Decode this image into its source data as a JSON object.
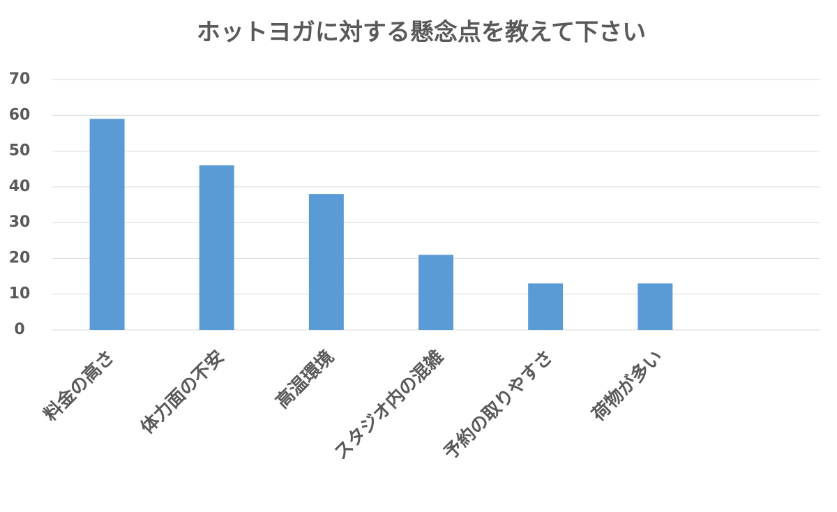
{
  "chart_data": {
    "type": "bar",
    "title": "ホットヨガに対する懸念点を教えて下さい",
    "categories": [
      "料金の高さ",
      "体力面の不安",
      "高温環境",
      "スタジオ内の混雑",
      "予約の取りやすさ",
      "荷物が多い",
      null
    ],
    "values": [
      59,
      46,
      38,
      21,
      13,
      13,
      null
    ],
    "color": "#5b9bd5",
    "ylim": [
      0,
      70
    ],
    "yticks": [
      0,
      10,
      20,
      30,
      40,
      50,
      60,
      70
    ],
    "grid": true
  }
}
